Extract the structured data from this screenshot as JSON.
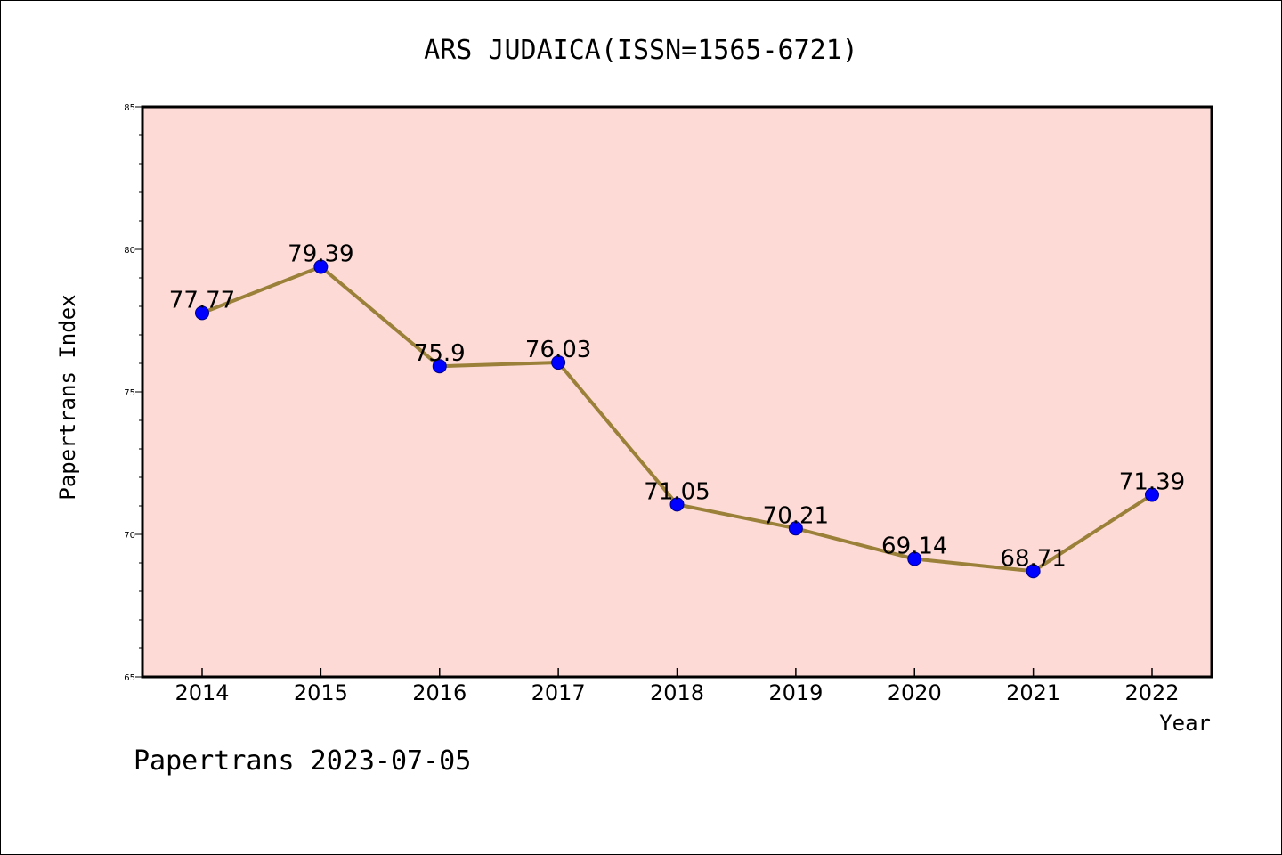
{
  "chart_data": {
    "type": "line",
    "title": "ARS JUDAICA(ISSN=1565-6721)",
    "xlabel": "Year",
    "ylabel": "Papertrans Index",
    "categories": [
      "2014",
      "2015",
      "2016",
      "2017",
      "2018",
      "2019",
      "2020",
      "2021",
      "2022"
    ],
    "values": [
      77.77,
      79.39,
      75.9,
      76.03,
      71.05,
      70.21,
      69.14,
      68.71,
      71.39
    ],
    "data_labels": [
      "77.77",
      "79.39",
      "75.9",
      "76.03",
      "71.05",
      "70.21",
      "69.14",
      "68.71",
      "71.39"
    ],
    "ylim": [
      65,
      85
    ],
    "yticks": [
      "65",
      "70",
      "75",
      "80",
      "85"
    ],
    "grid": false,
    "colors": {
      "plot_background": "#fddad6",
      "line": "#9a8039",
      "marker": "#0000ff"
    }
  },
  "footer": {
    "text": "Papertrans 2023-07-05"
  }
}
